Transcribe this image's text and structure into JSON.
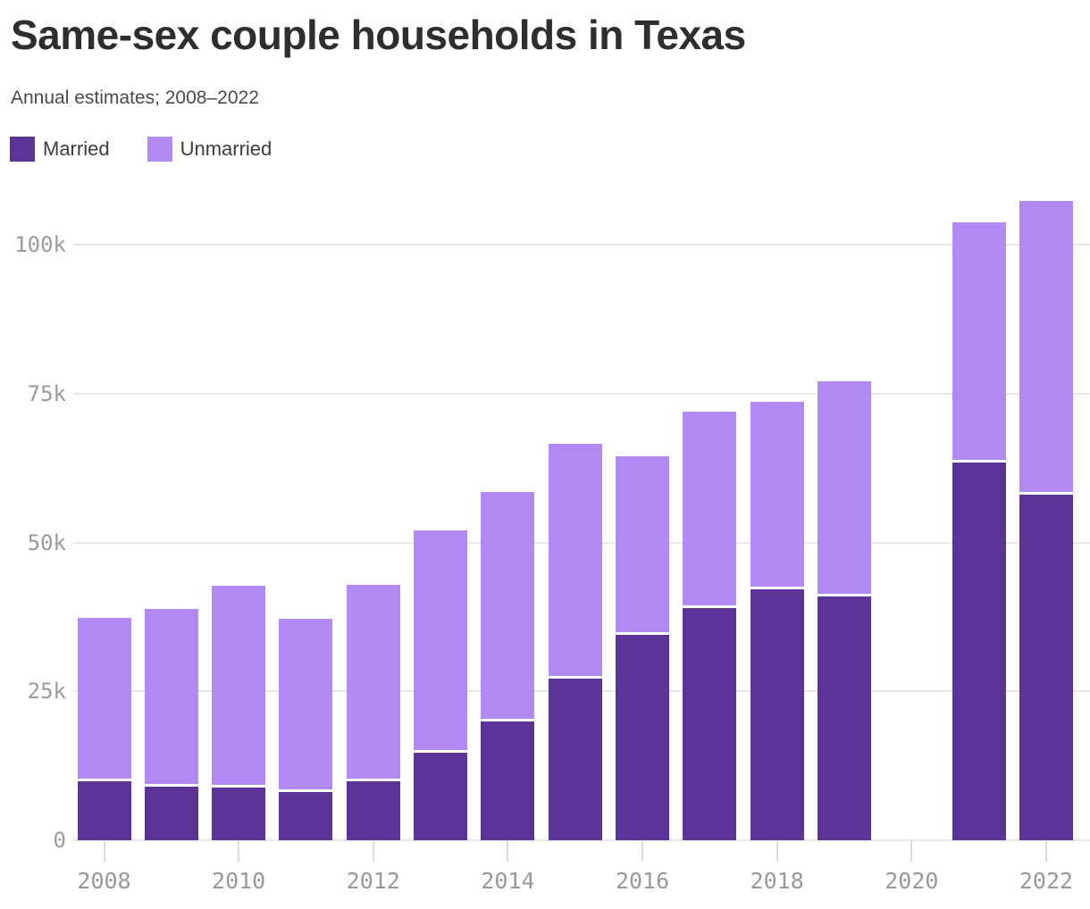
{
  "page": {
    "title": "Same-sex couple households in Texas",
    "subtitle": "Annual estimates; 2008–2022"
  },
  "legend": {
    "items": [
      {
        "label": "Married",
        "color": "#5c3396"
      },
      {
        "label": "Unmarried",
        "color": "#b28af3"
      }
    ]
  },
  "chart_data": {
    "type": "bar",
    "stacked": true,
    "title": "Same-sex couple households in Texas",
    "subtitle": "Annual estimates; 2008–2022",
    "unit": "households",
    "categories": [
      2008,
      2009,
      2010,
      2011,
      2012,
      2013,
      2014,
      2015,
      2016,
      2017,
      2018,
      2019,
      2020,
      2021,
      2022
    ],
    "series": [
      {
        "name": "Married",
        "color": "#5c3396",
        "values": [
          9900,
          9000,
          8900,
          8100,
          9900,
          14700,
          20000,
          27100,
          34500,
          39000,
          42200,
          41000,
          null,
          63400,
          58000
        ]
      },
      {
        "name": "Unmarried",
        "color": "#b28af3",
        "values": [
          27400,
          29900,
          33900,
          29100,
          33000,
          37300,
          38500,
          39400,
          29900,
          33000,
          31400,
          36100,
          null,
          40300,
          49400
        ]
      }
    ],
    "totals": [
      37300,
      38900,
      42800,
      37200,
      42900,
      52000,
      58500,
      66500,
      64400,
      72000,
      73600,
      77100,
      null,
      103700,
      107400
    ],
    "missing_categories": [
      2020
    ],
    "ylim": [
      0,
      110000
    ],
    "yticks": [
      {
        "value": 0,
        "label": "0"
      },
      {
        "value": 25000,
        "label": "25k"
      },
      {
        "value": 50000,
        "label": "50k"
      },
      {
        "value": 75000,
        "label": "75k"
      },
      {
        "value": 100000,
        "label": "100k"
      }
    ],
    "xtick_labels": [
      "2008",
      "2010",
      "2012",
      "2014",
      "2016",
      "2018",
      "2020",
      "2022"
    ],
    "grid": "horizontal",
    "legend_position": "top-left"
  }
}
